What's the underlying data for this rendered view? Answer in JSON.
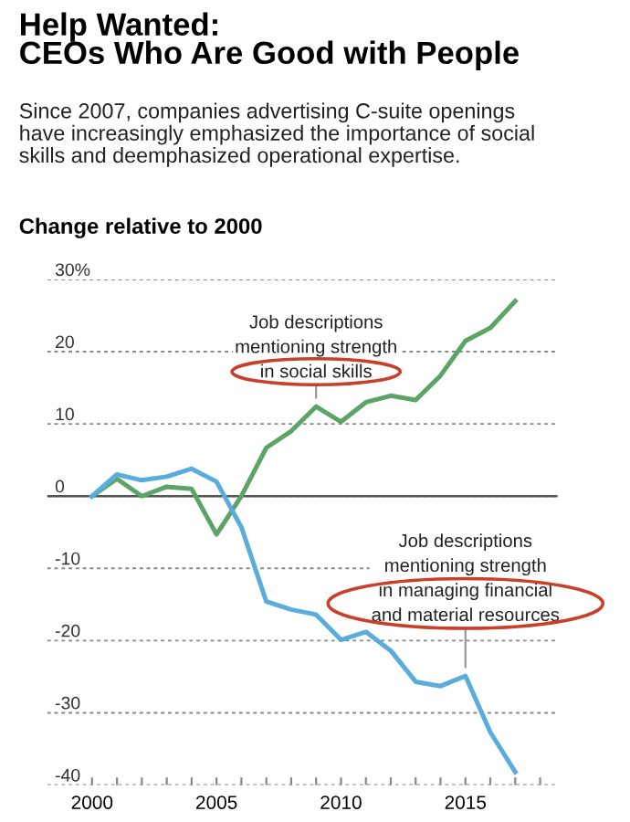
{
  "chart_data": {
    "type": "line",
    "title": "Help Wanted:\nCEOs Who Are Good with People",
    "subtitle": "Since 2007, companies advertising C-suite openings\nhave increasingly emphasized the importance of social\nskills and deemphasized operational expertise.",
    "ylabel": "Change relative to 2000",
    "x": [
      2000,
      2001,
      2002,
      2003,
      2004,
      2005,
      2006,
      2007,
      2008,
      2009,
      2010,
      2011,
      2012,
      2013,
      2014,
      2015,
      2016,
      2017
    ],
    "series": [
      {
        "color": "#5ba466",
        "values": [
          0,
          2.4,
          0,
          1.3,
          1.0,
          -5.3,
          0,
          6.7,
          9,
          12.4,
          10.3,
          13,
          13.9,
          13.3,
          16.7,
          21.5,
          23.3,
          27
        ]
      },
      {
        "color": "#5aacdc",
        "values": [
          0,
          3.0,
          2.2,
          2.7,
          3.8,
          2.0,
          -4.3,
          -14.6,
          -15.7,
          -16.4,
          -19.9,
          -18.8,
          -21.4,
          -25.7,
          -26.3,
          -24.9,
          -32.7,
          -38.2
        ]
      }
    ],
    "annotations": [
      {
        "text": "Job descriptions\nmentioning strength\nin social skills",
        "x": 2009,
        "y": 12.4
      },
      {
        "text": "Job descriptions\nmentioning strength\nin managing financial\nand material resources",
        "x": 2015,
        "y": -24.9
      }
    ],
    "xlim": [
      1998.2,
      2018.7
    ],
    "ylim": [
      -40,
      30
    ],
    "xticks": [
      2000,
      {
        "value": 2001,
        "label": null
      },
      {
        "value": 2002,
        "label": null
      },
      {
        "value": 2003,
        "label": null
      },
      {
        "value": 2004,
        "label": null
      },
      2005,
      {
        "value": 2006,
        "label": null
      },
      {
        "value": 2007,
        "label": null
      },
      {
        "value": 2008,
        "label": null
      },
      {
        "value": 2009,
        "label": null
      },
      2010,
      {
        "value": 2011,
        "label": null
      },
      {
        "value": 2012,
        "label": null
      },
      {
        "value": 2013,
        "label": null
      },
      {
        "value": 2014,
        "label": null
      },
      2015,
      {
        "value": 2016,
        "label": null
      },
      {
        "value": 2017,
        "label": null
      },
      {
        "value": 2018,
        "label": null
      }
    ],
    "yticks": [
      {
        "value": 30,
        "label": "30%"
      },
      20,
      10,
      0,
      -10,
      -20,
      -30,
      -40
    ],
    "ref_lines": [
      {
        "axis": "y",
        "value": 0,
        "color": "#555555",
        "line_style": "solid"
      }
    ],
    "grid": "y",
    "marker": "none",
    "line_style": "solid",
    "legend": false
  }
}
